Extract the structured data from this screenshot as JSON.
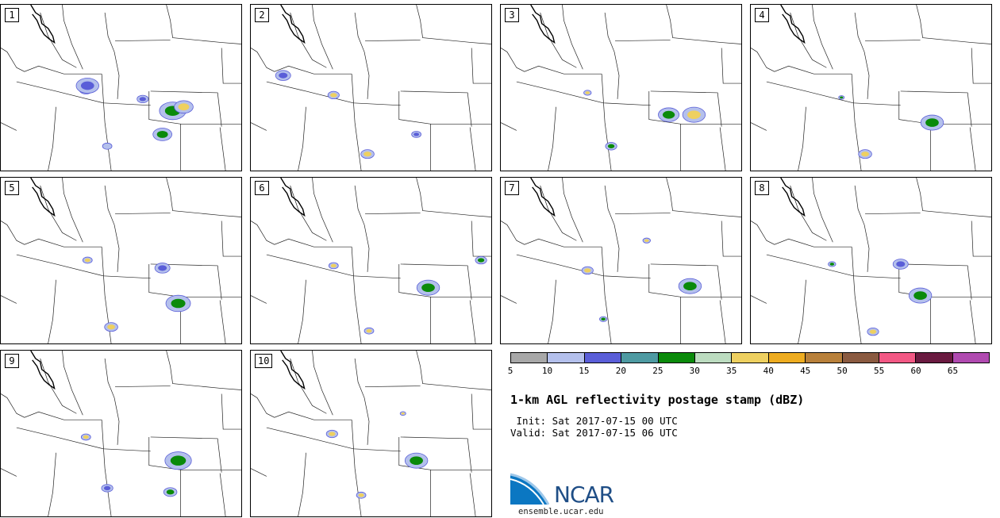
{
  "panels": [
    {
      "label": "1"
    },
    {
      "label": "2"
    },
    {
      "label": "3"
    },
    {
      "label": "4"
    },
    {
      "label": "5"
    },
    {
      "label": "6"
    },
    {
      "label": "7"
    },
    {
      "label": "8"
    },
    {
      "label": "9"
    },
    {
      "label": "10"
    }
  ],
  "colorbar": {
    "colors": [
      "#a8a8a8",
      "#b4c0ec",
      "#5a5ed8",
      "#4e9aa2",
      "#0a8a0a",
      "#bcdcc0",
      "#eed060",
      "#eeac20",
      "#b8803a",
      "#8a5a40",
      "#f25884",
      "#6a1a40",
      "#b04ab0"
    ],
    "tick_labels": [
      "5",
      "10",
      "15",
      "20",
      "25",
      "30",
      "35",
      "40",
      "45",
      "50",
      "55",
      "60",
      "65"
    ]
  },
  "title": "1-km AGL reflectivity postage stamp (dBZ)",
  "init_text": " Init: Sat 2017-07-15 00 UTC",
  "valid_text": "Valid: Sat 2017-07-15 06 UTC",
  "logo": {
    "text": "NCAR",
    "url": "ensemble.ucar.edu"
  }
}
